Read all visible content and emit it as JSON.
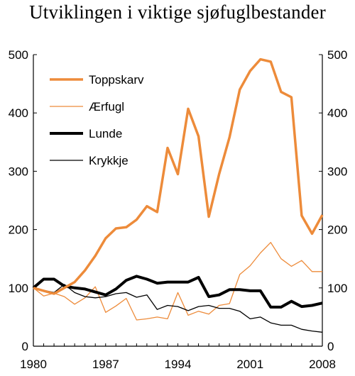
{
  "chart_data": {
    "type": "line",
    "title": "Utviklingen i viktige sjøfuglbestander",
    "xlabel": "",
    "ylabel": "",
    "xlim": [
      1980,
      2008
    ],
    "ylim": [
      0,
      500
    ],
    "x_ticks": [
      "1980",
      "1987",
      "1994",
      "2001",
      "2008"
    ],
    "y_ticks": [
      "0",
      "100",
      "200",
      "300",
      "400",
      "500"
    ],
    "secondary_y_axis": true,
    "grid": false,
    "legend_position": "top-left",
    "x": [
      1980,
      1981,
      1982,
      1983,
      1984,
      1985,
      1986,
      1987,
      1988,
      1989,
      1990,
      1991,
      1992,
      1993,
      1994,
      1995,
      1996,
      1997,
      1998,
      1999,
      2000,
      2001,
      2002,
      2003,
      2004,
      2005,
      2006,
      2007,
      2008
    ],
    "series": [
      {
        "name": "Toppskarv",
        "color": "#ed8b3a",
        "width": 3.5,
        "values": [
          100,
          95,
          90,
          100,
          110,
          130,
          155,
          185,
          202,
          204,
          217,
          240,
          230,
          340,
          295,
          407,
          360,
          222,
          295,
          358,
          440,
          472,
          492,
          488,
          436,
          427,
          224,
          193,
          225
        ]
      },
      {
        "name": "Ærfugl",
        "color": "#ed8b3a",
        "width": 1.3,
        "values": [
          100,
          86,
          91,
          85,
          72,
          83,
          102,
          58,
          69,
          82,
          45,
          47,
          50,
          47,
          92,
          53,
          60,
          55,
          70,
          73,
          123,
          138,
          160,
          178,
          150,
          137,
          147,
          128,
          128
        ]
      },
      {
        "name": "Lunde",
        "color": "#000000",
        "width": 4,
        "values": [
          100,
          115,
          115,
          103,
          100,
          98,
          93,
          88,
          98,
          113,
          120,
          115,
          108,
          110,
          110,
          110,
          118,
          85,
          88,
          97,
          97,
          95,
          95,
          67,
          67,
          77,
          68,
          70,
          74
        ]
      },
      {
        "name": "Krykkje",
        "color": "#000000",
        "width": 1.3,
        "values": [
          100,
          96,
          92,
          106,
          92,
          85,
          83,
          85,
          90,
          92,
          84,
          88,
          63,
          70,
          68,
          61,
          68,
          70,
          65,
          65,
          60,
          47,
          50,
          40,
          36,
          36,
          29,
          26,
          24
        ]
      }
    ]
  }
}
